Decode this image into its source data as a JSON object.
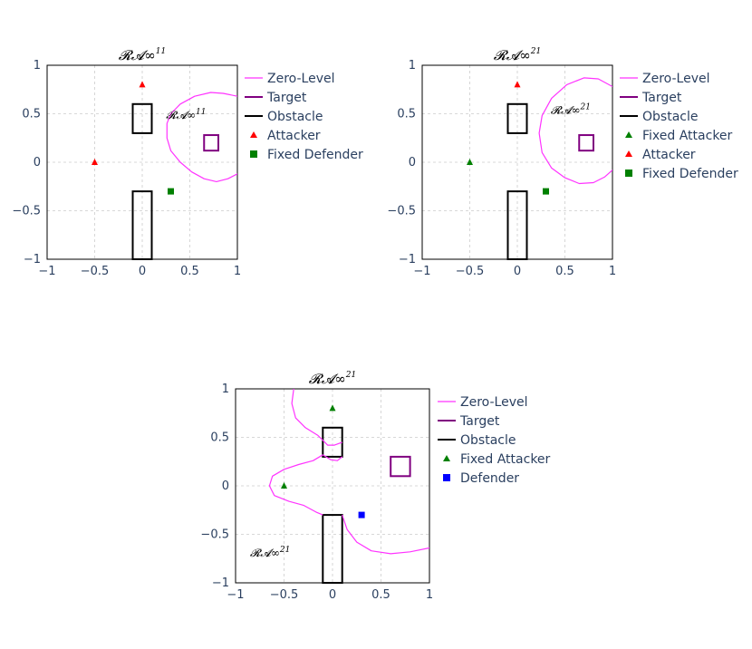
{
  "chart_data": [
    {
      "type": "scatter",
      "title": "𝓡𝓐∞",
      "title_sup": "11",
      "annotation": "𝓡𝓐∞",
      "annotation_sup": "11",
      "xlim": [
        -1,
        1
      ],
      "ylim": [
        -1,
        1
      ],
      "x_ticks": [
        "−1",
        "−0.5",
        "0",
        "0.5",
        "1"
      ],
      "y_ticks": [
        "1",
        "0.5",
        "0",
        "−0.5",
        "−1"
      ],
      "grid": true,
      "legend_position": "right",
      "legend": [
        "Zero-Level",
        "Target",
        "Obstacle",
        "Attacker",
        "Fixed Defender"
      ],
      "target": {
        "x": [
          0.65,
          0.8
        ],
        "y": [
          0.12,
          0.28
        ]
      },
      "obstacles": [
        {
          "x": [
            -0.1,
            0.1
          ],
          "y": [
            0.3,
            0.6
          ]
        },
        {
          "x": [
            -0.1,
            0.1
          ],
          "y": [
            -1.0,
            -0.3
          ]
        }
      ],
      "attackers": [
        {
          "x": 0.0,
          "y": 0.8
        },
        {
          "x": -0.5,
          "y": 0.0
        }
      ],
      "fixed_attackers": [],
      "fixed_defenders": [
        {
          "x": 0.3,
          "y": -0.3
        }
      ],
      "defenders": [],
      "zero_level": [
        [
          [
            1.0,
            0.68
          ],
          [
            0.85,
            0.71
          ],
          [
            0.72,
            0.72
          ],
          [
            0.55,
            0.68
          ],
          [
            0.4,
            0.6
          ],
          [
            0.3,
            0.5
          ],
          [
            0.26,
            0.4
          ],
          [
            0.26,
            0.25
          ],
          [
            0.3,
            0.12
          ],
          [
            0.4,
            0.0
          ],
          [
            0.52,
            -0.1
          ],
          [
            0.65,
            -0.17
          ],
          [
            0.78,
            -0.2
          ],
          [
            0.9,
            -0.17
          ],
          [
            1.0,
            -0.12
          ]
        ]
      ]
    },
    {
      "type": "scatter",
      "title": "𝓡𝓐∞",
      "title_sup": "21",
      "annotation": "𝓡𝓐∞",
      "annotation_sup": "21",
      "xlim": [
        -1,
        1
      ],
      "ylim": [
        -1,
        1
      ],
      "x_ticks": [
        "−1",
        "−0.5",
        "0",
        "0.5",
        "1"
      ],
      "y_ticks": [
        "1",
        "0.5",
        "0",
        "−0.5",
        "−1"
      ],
      "grid": true,
      "legend_position": "right",
      "legend": [
        "Zero-Level",
        "Target",
        "Obstacle",
        "Fixed Attacker",
        "Attacker",
        "Fixed Defender"
      ],
      "target": {
        "x": [
          0.65,
          0.8
        ],
        "y": [
          0.12,
          0.28
        ]
      },
      "obstacles": [
        {
          "x": [
            -0.1,
            0.1
          ],
          "y": [
            0.3,
            0.6
          ]
        },
        {
          "x": [
            -0.1,
            0.1
          ],
          "y": [
            -1.0,
            -0.3
          ]
        }
      ],
      "attackers": [
        {
          "x": 0.0,
          "y": 0.8
        }
      ],
      "fixed_attackers": [
        {
          "x": -0.5,
          "y": 0.0
        }
      ],
      "fixed_defenders": [
        {
          "x": 0.3,
          "y": -0.3
        }
      ],
      "defenders": [],
      "zero_level": [
        [
          [
            1.0,
            0.78
          ],
          [
            0.85,
            0.86
          ],
          [
            0.7,
            0.87
          ],
          [
            0.52,
            0.8
          ],
          [
            0.36,
            0.66
          ],
          [
            0.26,
            0.48
          ],
          [
            0.23,
            0.3
          ],
          [
            0.26,
            0.1
          ],
          [
            0.36,
            -0.06
          ],
          [
            0.5,
            -0.16
          ],
          [
            0.65,
            -0.22
          ],
          [
            0.8,
            -0.21
          ],
          [
            0.92,
            -0.15
          ],
          [
            1.0,
            -0.08
          ]
        ]
      ]
    },
    {
      "type": "scatter",
      "title": "𝓡𝓐∞",
      "title_sup": "21",
      "annotation": "𝓡𝓐∞",
      "annotation_sup": "21",
      "xlim": [
        -1,
        1
      ],
      "ylim": [
        -1,
        1
      ],
      "x_ticks": [
        "−1",
        "−0.5",
        "0",
        "0.5",
        "1"
      ],
      "y_ticks": [
        "1",
        "0.5",
        "0",
        "−0.5",
        "−1"
      ],
      "grid": true,
      "legend_position": "right",
      "legend": [
        "Zero-Level",
        "Target",
        "Obstacle",
        "Fixed Attacker",
        "Defender"
      ],
      "target": {
        "x": [
          0.6,
          0.8
        ],
        "y": [
          0.1,
          0.3
        ]
      },
      "obstacles": [
        {
          "x": [
            -0.1,
            0.1
          ],
          "y": [
            0.3,
            0.6
          ]
        },
        {
          "x": [
            -0.1,
            0.1
          ],
          "y": [
            -1.0,
            -0.3
          ]
        }
      ],
      "attackers": [],
      "fixed_attackers": [
        {
          "x": 0.0,
          "y": 0.8
        },
        {
          "x": -0.5,
          "y": 0.0
        }
      ],
      "fixed_defenders": [],
      "defenders": [
        {
          "x": 0.3,
          "y": -0.3
        }
      ],
      "zero_level": [
        [
          [
            -0.4,
            1.0
          ],
          [
            -0.42,
            0.85
          ],
          [
            -0.38,
            0.7
          ],
          [
            -0.28,
            0.6
          ],
          [
            -0.15,
            0.52
          ],
          [
            -0.1,
            0.47
          ]
        ],
        [
          [
            -0.1,
            0.32
          ],
          [
            -0.2,
            0.26
          ],
          [
            -0.35,
            0.22
          ],
          [
            -0.5,
            0.17
          ],
          [
            -0.62,
            0.1
          ],
          [
            -0.65,
            0.0
          ],
          [
            -0.6,
            -0.1
          ],
          [
            -0.45,
            -0.16
          ],
          [
            -0.3,
            -0.2
          ],
          [
            -0.17,
            -0.27
          ],
          [
            -0.1,
            -0.3
          ]
        ],
        [
          [
            0.1,
            -0.3
          ],
          [
            0.15,
            -0.45
          ],
          [
            0.25,
            -0.58
          ],
          [
            0.4,
            -0.67
          ],
          [
            0.6,
            -0.7
          ],
          [
            0.8,
            -0.68
          ],
          [
            1.0,
            -0.64
          ]
        ],
        [
          [
            -0.1,
            0.32
          ],
          [
            -0.02,
            0.27
          ],
          [
            0.05,
            0.26
          ],
          [
            0.1,
            0.3
          ]
        ],
        [
          [
            -0.1,
            0.47
          ],
          [
            -0.05,
            0.42
          ],
          [
            0.02,
            0.42
          ],
          [
            0.1,
            0.45
          ]
        ]
      ]
    }
  ]
}
